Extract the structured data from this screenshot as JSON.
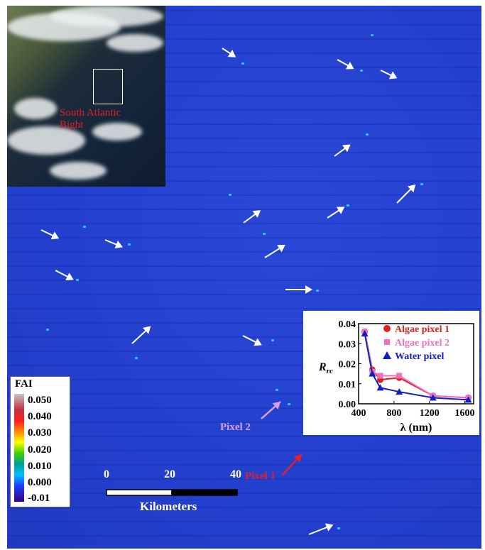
{
  "inset": {
    "label_line1": "South Atlantic",
    "label_line2": "Bight"
  },
  "legend": {
    "title": "FAI",
    "ticks": [
      "0.050",
      "0.040",
      "0.030",
      "0.020",
      "0.010",
      "0.000",
      "-0.01"
    ]
  },
  "pixel_labels": {
    "pixel2": "Pixel 2",
    "pixel1": "Pixel 1"
  },
  "pixel_colors": {
    "pixel2": "#d9a0e0",
    "pixel1": "#e0202a"
  },
  "scale_bar": {
    "ticks": [
      "0",
      "20",
      "40"
    ],
    "unit": "Kilometers"
  },
  "chart_data": {
    "type": "line",
    "xlabel": "λ (nm)",
    "ylabel": "Rrc",
    "xlim": [
      400,
      1700
    ],
    "ylim": [
      0,
      0.04
    ],
    "xticks": [
      "400",
      "800",
      "1200",
      "1600"
    ],
    "yticks": [
      "0.00",
      "0.01",
      "0.02",
      "0.03",
      "0.04"
    ],
    "legend_position": "top-right",
    "series": [
      {
        "name": "Algae pixel 1",
        "color": "#e02020",
        "marker": "circle",
        "x": [
          469,
          555,
          645,
          859,
          1240,
          1640
        ],
        "y": [
          0.036,
          0.017,
          0.012,
          0.013,
          0.004,
          0.003
        ]
      },
      {
        "name": "Algae pixel 2",
        "color": "#f070c0",
        "marker": "square",
        "x": [
          469,
          555,
          645,
          859,
          1240,
          1640
        ],
        "y": [
          0.036,
          0.016,
          0.014,
          0.014,
          0.004,
          0.003
        ]
      },
      {
        "name": "Water pixel",
        "color": "#1020c0",
        "marker": "triangle",
        "x": [
          469,
          555,
          645,
          859,
          1240,
          1640
        ],
        "y": [
          0.035,
          0.015,
          0.008,
          0.006,
          0.003,
          0.002
        ]
      }
    ]
  }
}
